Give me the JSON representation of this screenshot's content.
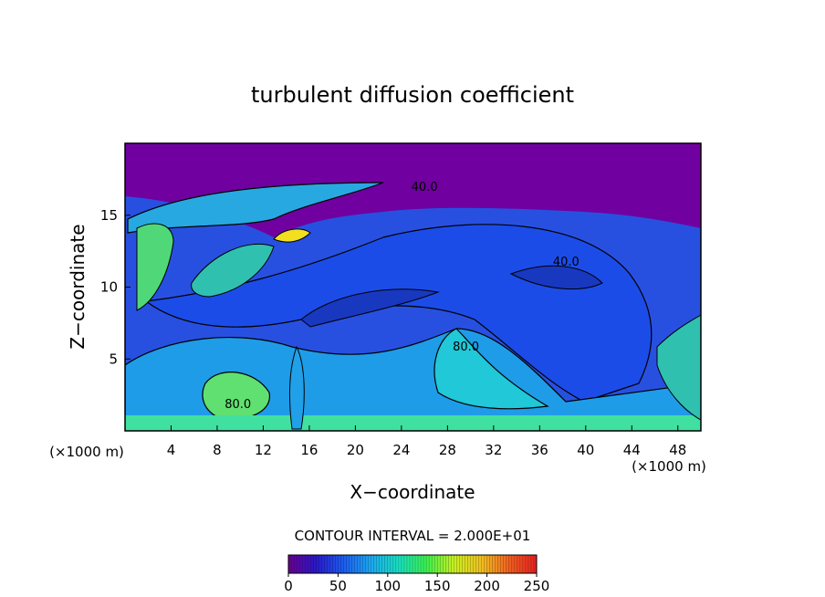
{
  "chart_data": {
    "type": "contour",
    "title": "turbulent diffusion coefficient",
    "xlabel": "X−coordinate",
    "ylabel": "Z−coordinate",
    "x_unit_label": "(×1000 m)",
    "y_unit_label": "(×1000 m)",
    "xlim": [
      0,
      50
    ],
    "ylim": [
      0,
      20
    ],
    "xticks": [
      4,
      8,
      12,
      16,
      20,
      24,
      28,
      32,
      36,
      40,
      44,
      48
    ],
    "yticks": [
      5,
      10,
      15
    ],
    "contour_labels": [
      {
        "value": 80,
        "label": "80.0",
        "x": 9.8,
        "y": 1.6
      },
      {
        "value": 80,
        "label": "80.0",
        "x": 29.6,
        "y": 5.6
      },
      {
        "value": 40,
        "label": "40.0",
        "x": 38.3,
        "y": 11.5
      },
      {
        "value": 40,
        "label": "40.0",
        "x": 26,
        "y": 16.7
      }
    ],
    "contour_interval_label": "CONTOUR INTERVAL = 2.000E+01",
    "colorbar": {
      "lim": [
        0,
        250
      ],
      "ticks": [
        0,
        50,
        100,
        150,
        200,
        250
      ],
      "colors": [
        "#6a0090",
        "#2a18c8",
        "#1c5cf0",
        "#1ca8f0",
        "#18e0c0",
        "#3cf050",
        "#c8f020",
        "#f0c020",
        "#f06020",
        "#e82020"
      ]
    }
  }
}
